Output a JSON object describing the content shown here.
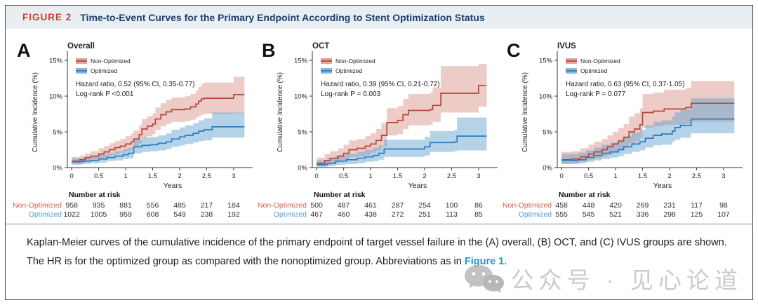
{
  "header": {
    "label": "FIGURE 2",
    "title": "Time-to-Event Curves for the Primary Endpoint According to Stent Optimization Status"
  },
  "colors": {
    "red": {
      "line": "#b6473c",
      "fill": "rgba(198,92,77,0.32)",
      "legend_fill": "rgba(198,92,77,0.55)",
      "label": "#d9604f"
    },
    "blue": {
      "line": "#2d7dbb",
      "fill": "rgba(99,160,206,0.48)",
      "legend_fill": "rgba(99,160,206,0.75)",
      "label": "#55a0d6"
    },
    "figure_label_red": "#d63a2f",
    "title_navy": "#1c3f6e",
    "link_blue": "#2496cf",
    "axis": "#333333"
  },
  "risk_table_header": "Number at risk",
  "chart_data": [
    {
      "type": "line",
      "panel_letter": "A",
      "title": "Overall",
      "xlabel": "Years",
      "ylabel": "Cumulative Incidence (%)",
      "xlim": [
        -0.08,
        3.3
      ],
      "ylim": [
        0,
        15.5
      ],
      "xticks": [
        0,
        0.5,
        1,
        1.5,
        2,
        2.5,
        3
      ],
      "xtick_labels": [
        "0",
        "0.5",
        "1",
        "1.5",
        "2",
        "2.5",
        "3"
      ],
      "yticks": [
        0,
        5,
        10,
        15
      ],
      "ytick_labels": [
        "0%",
        "5%",
        "10%",
        "15%"
      ],
      "grid": false,
      "legend_position": "top-left",
      "annotations": [
        "Hazard ratio, 0.52 (95% CI, 0.35-0.77)",
        "Log-rank P <0.001"
      ],
      "series": [
        {
          "name": "Non-Optimized",
          "color_key": "red",
          "points_x_y_lo_hi": [
            [
              0,
              0.9,
              0.5,
              1.5
            ],
            [
              0.15,
              1.1,
              0.6,
              1.7
            ],
            [
              0.25,
              1.4,
              0.8,
              2.0
            ],
            [
              0.35,
              1.6,
              1.0,
              2.3
            ],
            [
              0.5,
              1.9,
              1.2,
              2.7
            ],
            [
              0.6,
              2.2,
              1.4,
              3.0
            ],
            [
              0.7,
              2.5,
              1.7,
              3.4
            ],
            [
              0.8,
              2.8,
              1.9,
              3.7
            ],
            [
              0.9,
              3.0,
              2.1,
              4.0
            ],
            [
              1.0,
              3.3,
              2.3,
              4.4
            ],
            [
              1.1,
              3.6,
              2.6,
              4.8
            ],
            [
              1.15,
              4.0,
              2.9,
              5.2
            ],
            [
              1.25,
              4.6,
              3.4,
              5.9
            ],
            [
              1.3,
              5.4,
              4.1,
              6.8
            ],
            [
              1.4,
              5.8,
              4.4,
              7.2
            ],
            [
              1.5,
              6.1,
              4.7,
              7.6
            ],
            [
              1.55,
              6.8,
              5.3,
              8.4
            ],
            [
              1.65,
              7.4,
              5.8,
              9.0
            ],
            [
              1.75,
              7.8,
              6.1,
              9.5
            ],
            [
              1.85,
              8.1,
              6.4,
              9.8
            ],
            [
              2.1,
              8.2,
              6.5,
              10.0
            ],
            [
              2.2,
              8.5,
              6.7,
              10.3
            ],
            [
              2.3,
              8.9,
              7.0,
              10.8
            ],
            [
              2.35,
              9.3,
              7.2,
              11.3
            ],
            [
              2.4,
              9.6,
              7.4,
              11.7
            ],
            [
              2.45,
              9.7,
              7.5,
              11.9
            ],
            [
              3.0,
              10.2,
              7.6,
              12.7
            ],
            [
              3.2,
              10.2,
              7.6,
              12.7
            ]
          ]
        },
        {
          "name": "Optimized",
          "color_key": "blue",
          "points_x_y_lo_hi": [
            [
              0,
              0.8,
              0.4,
              1.3
            ],
            [
              0.2,
              0.9,
              0.5,
              1.4
            ],
            [
              0.35,
              1.0,
              0.6,
              1.6
            ],
            [
              0.5,
              1.2,
              0.7,
              1.8
            ],
            [
              0.65,
              1.4,
              0.9,
              2.0
            ],
            [
              0.8,
              1.6,
              1.0,
              2.3
            ],
            [
              0.95,
              1.8,
              1.2,
              2.6
            ],
            [
              1.05,
              2.0,
              1.3,
              2.8
            ],
            [
              1.15,
              2.9,
              2.0,
              3.9
            ],
            [
              1.3,
              3.1,
              2.2,
              4.2
            ],
            [
              1.45,
              3.2,
              2.3,
              4.3
            ],
            [
              1.6,
              3.4,
              2.4,
              4.5
            ],
            [
              1.75,
              3.6,
              2.6,
              4.8
            ],
            [
              1.85,
              4.0,
              2.9,
              5.3
            ],
            [
              2.0,
              4.3,
              3.1,
              5.6
            ],
            [
              2.1,
              4.5,
              3.3,
              5.9
            ],
            [
              2.25,
              4.8,
              3.5,
              6.2
            ],
            [
              2.35,
              5.1,
              3.7,
              6.6
            ],
            [
              2.45,
              5.3,
              3.8,
              6.9
            ],
            [
              2.6,
              5.7,
              4.2,
              7.7
            ],
            [
              3.2,
              5.7,
              4.2,
              7.7
            ]
          ]
        }
      ],
      "number_at_risk": {
        "rows": [
          {
            "label": "Non-Optimized",
            "color_key": "red",
            "values": [
              "958",
              "935",
              "881",
              "556",
              "485",
              "217",
              "184"
            ]
          },
          {
            "label": "Optimized",
            "color_key": "blue",
            "values": [
              "1022",
              "1005",
              "959",
              "608",
              "549",
              "238",
              "192"
            ]
          }
        ]
      }
    },
    {
      "type": "line",
      "panel_letter": "B",
      "title": "OCT",
      "xlabel": "Years",
      "ylabel": "Cumulative Incidence (%)",
      "xlim": [
        -0.08,
        3.3
      ],
      "ylim": [
        0,
        15.5
      ],
      "xticks": [
        0,
        0.5,
        1,
        1.5,
        2,
        2.5,
        3
      ],
      "xtick_labels": [
        "0",
        "0.5",
        "1",
        "1.5",
        "2",
        "2.5",
        "3"
      ],
      "yticks": [
        0,
        5,
        10,
        15
      ],
      "ytick_labels": [
        "0%",
        "5%",
        "10%",
        "15%"
      ],
      "grid": false,
      "legend_position": "top-left",
      "annotations": [
        "Hazard ratio, 0.39 (95% CI, 0.21-0.72)",
        "Log-rank P = 0.003"
      ],
      "series": [
        {
          "name": "Non-Optimized",
          "color_key": "red",
          "points_x_y_lo_hi": [
            [
              0,
              0.6,
              0.2,
              1.4
            ],
            [
              0.15,
              1.0,
              0.4,
              1.9
            ],
            [
              0.25,
              1.3,
              0.6,
              2.3
            ],
            [
              0.4,
              1.6,
              0.8,
              2.7
            ],
            [
              0.5,
              2.0,
              1.1,
              3.2
            ],
            [
              0.6,
              2.5,
              1.5,
              3.8
            ],
            [
              0.75,
              2.7,
              1.6,
              4.0
            ],
            [
              0.9,
              3.0,
              1.8,
              4.4
            ],
            [
              1.0,
              3.3,
              2.1,
              4.8
            ],
            [
              1.1,
              3.8,
              2.4,
              5.4
            ],
            [
              1.2,
              4.5,
              3.0,
              6.2
            ],
            [
              1.3,
              6.3,
              4.5,
              8.3
            ],
            [
              1.5,
              6.6,
              4.7,
              8.6
            ],
            [
              1.6,
              7.4,
              5.4,
              9.6
            ],
            [
              1.7,
              8.0,
              5.9,
              10.3
            ],
            [
              2.1,
              8.1,
              6.0,
              10.5
            ],
            [
              2.15,
              8.7,
              6.4,
              11.2
            ],
            [
              2.3,
              10.4,
              7.7,
              14.2
            ],
            [
              3.0,
              11.5,
              8.5,
              14.5
            ],
            [
              3.15,
              11.5,
              8.5,
              14.5
            ]
          ]
        },
        {
          "name": "Optimized",
          "color_key": "blue",
          "points_x_y_lo_hi": [
            [
              0,
              0.4,
              0.1,
              1.0
            ],
            [
              0.2,
              0.6,
              0.2,
              1.3
            ],
            [
              0.35,
              0.9,
              0.4,
              1.7
            ],
            [
              0.55,
              1.1,
              0.5,
              1.9
            ],
            [
              0.75,
              1.3,
              0.6,
              2.2
            ],
            [
              0.9,
              1.5,
              0.8,
              2.5
            ],
            [
              1.05,
              1.7,
              0.9,
              2.8
            ],
            [
              1.15,
              2.0,
              1.1,
              3.1
            ],
            [
              1.25,
              2.6,
              1.5,
              3.9
            ],
            [
              2.0,
              2.9,
              1.7,
              4.3
            ],
            [
              2.1,
              3.5,
              2.2,
              5.1
            ],
            [
              2.55,
              3.6,
              2.3,
              5.3
            ],
            [
              2.6,
              4.4,
              2.4,
              7.0
            ],
            [
              3.15,
              4.4,
              2.0,
              7.0
            ]
          ]
        }
      ],
      "number_at_risk": {
        "rows": [
          {
            "label": "Non-Optimized",
            "color_key": "red",
            "values": [
              "500",
              "487",
              "461",
              "287",
              "254",
              "100",
              "86"
            ]
          },
          {
            "label": "Optimized",
            "color_key": "blue",
            "values": [
              "467",
              "460",
              "438",
              "272",
              "251",
              "113",
              "85"
            ]
          }
        ]
      }
    },
    {
      "type": "line",
      "panel_letter": "C",
      "title": "IVUS",
      "xlabel": "Years",
      "ylabel": "Cumulative Incidence (%)",
      "xlim": [
        -0.08,
        3.3
      ],
      "ylim": [
        0,
        15.5
      ],
      "xticks": [
        0,
        0.5,
        1,
        1.5,
        2,
        2.5,
        3
      ],
      "xtick_labels": [
        "0",
        "0.5",
        "1",
        "1.5",
        "2",
        "2.5",
        "3"
      ],
      "yticks": [
        0,
        5,
        10,
        15
      ],
      "ytick_labels": [
        "0%",
        "5%",
        "10%",
        "15%"
      ],
      "grid": false,
      "legend_position": "top-left",
      "annotations": [
        "Hazard ratio, 0.63 (95% CI, 0.37-1.05)",
        "Log-rank P = 0.077"
      ],
      "series": [
        {
          "name": "Non-Optimized",
          "color_key": "red",
          "points_x_y_lo_hi": [
            [
              0,
              1.1,
              0.5,
              2.2
            ],
            [
              0.2,
              1.2,
              0.6,
              2.3
            ],
            [
              0.35,
              1.5,
              0.8,
              2.7
            ],
            [
              0.5,
              1.9,
              1.1,
              3.2
            ],
            [
              0.6,
              2.2,
              1.3,
              3.6
            ],
            [
              0.75,
              2.5,
              1.5,
              4.0
            ],
            [
              0.85,
              2.9,
              1.8,
              4.5
            ],
            [
              0.95,
              3.3,
              2.1,
              5.0
            ],
            [
              1.05,
              3.7,
              2.4,
              5.5
            ],
            [
              1.15,
              4.2,
              2.8,
              6.1
            ],
            [
              1.25,
              5.0,
              3.4,
              7.1
            ],
            [
              1.35,
              5.4,
              3.7,
              7.6
            ],
            [
              1.45,
              6.0,
              4.2,
              8.3
            ],
            [
              1.5,
              7.7,
              5.6,
              10.3
            ],
            [
              1.7,
              7.9,
              5.8,
              10.5
            ],
            [
              1.9,
              8.2,
              6.0,
              10.9
            ],
            [
              2.3,
              8.4,
              6.1,
              11.1
            ],
            [
              2.4,
              9.0,
              6.4,
              12.1
            ],
            [
              3.2,
              9.0,
              6.4,
              12.1
            ]
          ]
        },
        {
          "name": "Optimized",
          "color_key": "blue",
          "points_x_y_lo_hi": [
            [
              0,
              1.0,
              0.5,
              1.9
            ],
            [
              0.3,
              1.1,
              0.6,
              2.1
            ],
            [
              0.45,
              1.4,
              0.8,
              2.4
            ],
            [
              0.6,
              1.7,
              1.0,
              2.8
            ],
            [
              0.75,
              2.0,
              1.2,
              3.2
            ],
            [
              0.9,
              2.2,
              1.4,
              3.5
            ],
            [
              1.05,
              2.5,
              1.6,
              3.9
            ],
            [
              1.15,
              2.9,
              1.9,
              4.4
            ],
            [
              1.3,
              3.3,
              2.2,
              4.9
            ],
            [
              1.45,
              3.6,
              2.4,
              5.3
            ],
            [
              1.55,
              4.1,
              2.8,
              5.9
            ],
            [
              1.7,
              4.5,
              3.1,
              6.4
            ],
            [
              1.85,
              4.7,
              3.2,
              6.6
            ],
            [
              2.05,
              5.1,
              3.6,
              7.1
            ],
            [
              2.1,
              5.6,
              3.9,
              7.7
            ],
            [
              2.2,
              5.9,
              4.2,
              8.1
            ],
            [
              2.4,
              6.8,
              4.8,
              9.7
            ],
            [
              3.2,
              6.8,
              4.8,
              9.7
            ]
          ]
        }
      ],
      "number_at_risk": {
        "rows": [
          {
            "label": "Non-Optimized",
            "color_key": "red",
            "values": [
              "458",
              "448",
              "420",
              "269",
              "231",
              "117",
              "98"
            ]
          },
          {
            "label": "Optimized",
            "color_key": "blue",
            "values": [
              "555",
              "545",
              "521",
              "336",
              "298",
              "125",
              "107"
            ]
          }
        ]
      }
    }
  ],
  "caption": {
    "before": "Kaplan-Meier curves of the cumulative incidence of the primary endpoint of target vessel failure in the (A) overall, (B) OCT, and (C) IVUS groups are shown. The HR is for the optimized group as compared with the nonoptimized group. Abbreviations as in ",
    "link": "Figure 1",
    "after": "."
  },
  "watermark": {
    "text": "公众号 · 见心论道"
  }
}
